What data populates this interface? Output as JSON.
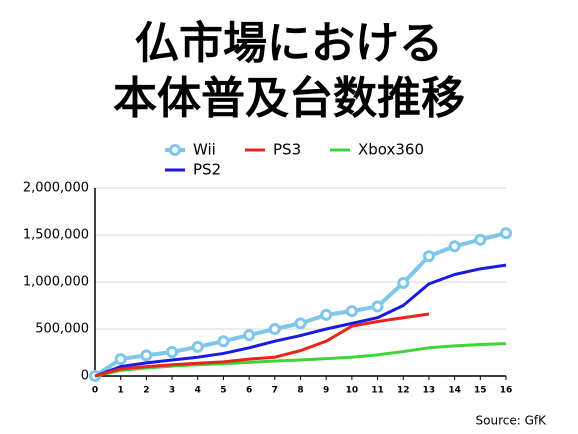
{
  "chart_data": {
    "type": "line",
    "title": [
      "仏市場における",
      "本体普及台数推移"
    ],
    "source": "Source: GfK",
    "x": [
      0,
      1,
      2,
      3,
      4,
      5,
      6,
      7,
      8,
      9,
      10,
      11,
      12,
      13,
      14,
      15,
      16
    ],
    "xlim": [
      0,
      16
    ],
    "xticks": [
      0,
      1,
      2,
      3,
      4,
      5,
      6,
      7,
      8,
      9,
      10,
      11,
      12,
      13,
      14,
      15,
      16
    ],
    "ylim": [
      0,
      2000000
    ],
    "yticks": [
      0,
      {
        "value": 500000,
        "label": "500,000"
      },
      {
        "value": 1000000,
        "label": "1,000,000"
      },
      {
        "value": 1500000,
        "label": "1,500,000"
      },
      {
        "value": 2000000,
        "label": "2,000,000"
      }
    ],
    "grid": true,
    "series": [
      {
        "name": "Wii",
        "color": "#7ec6ea",
        "marker": "circle",
        "values": [
          0,
          180000,
          220000,
          255000,
          310000,
          370000,
          435000,
          500000,
          560000,
          650000,
          690000,
          740000,
          990000,
          1275000,
          1380000,
          1450000,
          1520000
        ]
      },
      {
        "name": "PS3",
        "color": "#e8261c",
        "values": [
          0,
          75000,
          100000,
          120000,
          135000,
          150000,
          180000,
          200000,
          270000,
          370000,
          530000,
          580000,
          620000,
          660000,
          null,
          null,
          null
        ]
      },
      {
        "name": "Xbox360",
        "color": "#3fd43a",
        "values": [
          0,
          60000,
          85000,
          105000,
          120000,
          130000,
          145000,
          160000,
          170000,
          185000,
          200000,
          225000,
          260000,
          300000,
          320000,
          335000,
          345000
        ]
      },
      {
        "name": "PS2",
        "color": "#1a1ae0",
        "values": [
          0,
          100000,
          140000,
          170000,
          200000,
          240000,
          300000,
          370000,
          430000,
          500000,
          560000,
          620000,
          750000,
          980000,
          1080000,
          1140000,
          1180000
        ]
      }
    ]
  }
}
